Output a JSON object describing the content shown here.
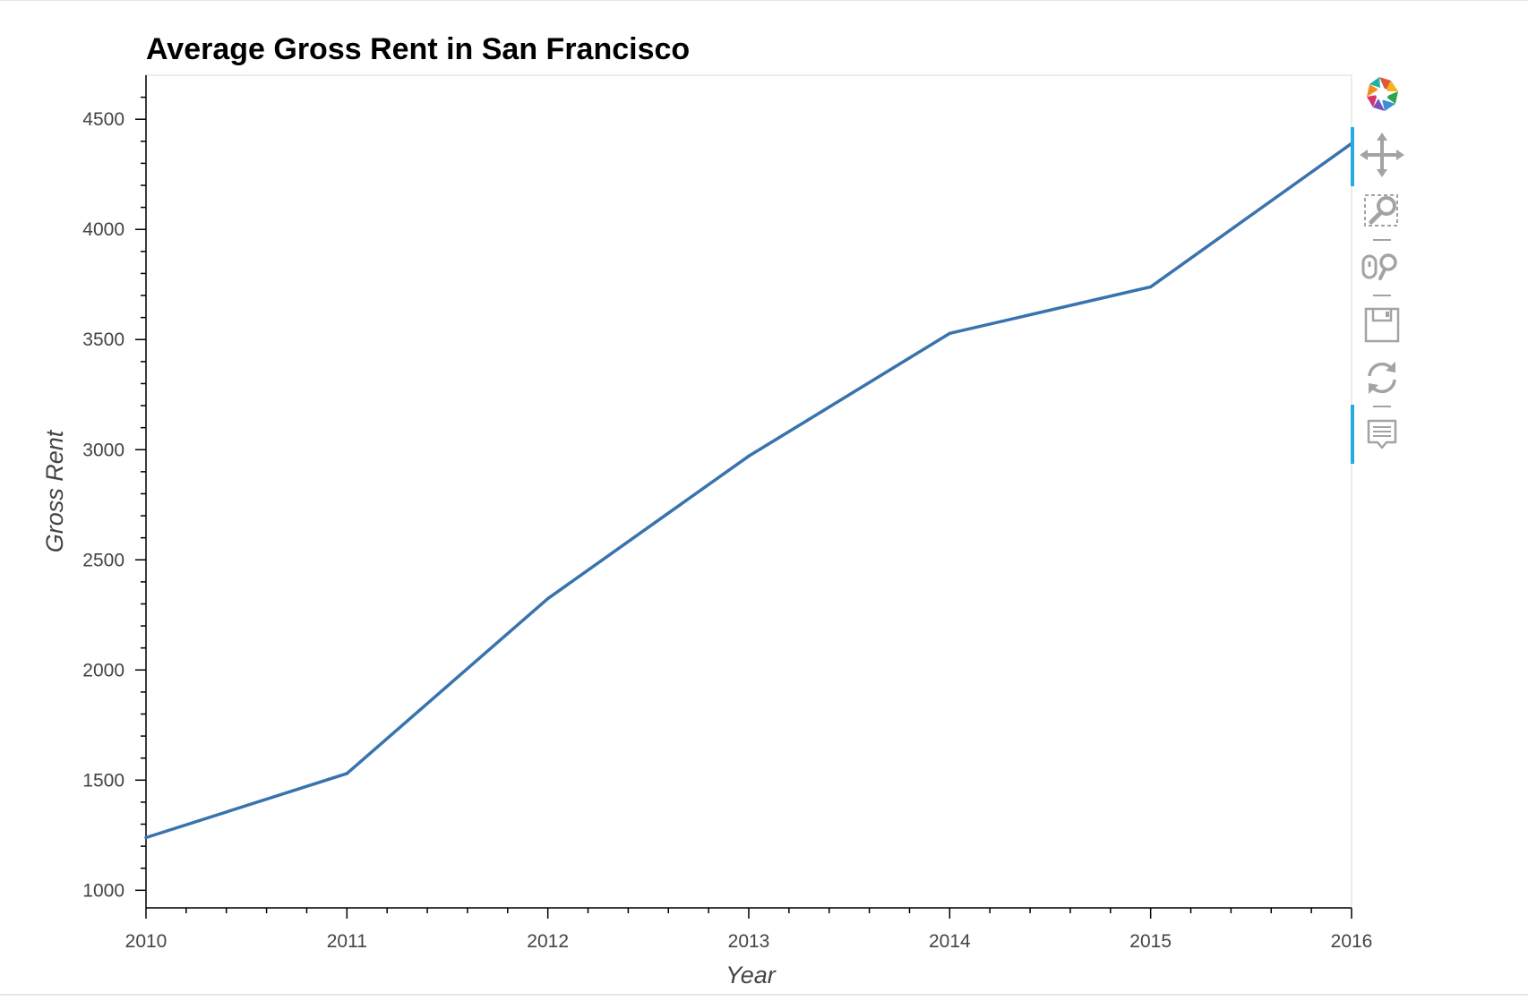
{
  "chart_data": {
    "type": "line",
    "title": "Average Gross Rent in San Francisco",
    "xlabel": "Year",
    "ylabel": "Gross Rent",
    "x": [
      2010,
      2011,
      2012,
      2013,
      2014,
      2015,
      2016
    ],
    "y": [
      1239,
      1530,
      2324,
      2971,
      3528,
      3739,
      4390
    ],
    "xlim": [
      2010,
      2016
    ],
    "ylim": [
      920,
      4700
    ],
    "x_ticks": [
      2010,
      2011,
      2012,
      2013,
      2014,
      2015,
      2016
    ],
    "y_ticks": [
      1000,
      1500,
      2000,
      2500,
      3000,
      3500,
      4000,
      4500
    ],
    "grid": false,
    "line_color": "#3873ae"
  },
  "toolbar": {
    "tools": [
      {
        "name": "bokeh-logo-icon",
        "active": false
      },
      {
        "name": "pan-icon",
        "active": true
      },
      {
        "name": "box-zoom-icon",
        "active": false
      },
      {
        "name": "wheel-zoom-icon",
        "active": false
      },
      {
        "name": "save-icon",
        "active": false
      },
      {
        "name": "reset-icon",
        "active": false
      },
      {
        "name": "hover-icon",
        "active": true
      }
    ],
    "active_color": "#26aae1",
    "icon_color": "#a3a3a3"
  }
}
